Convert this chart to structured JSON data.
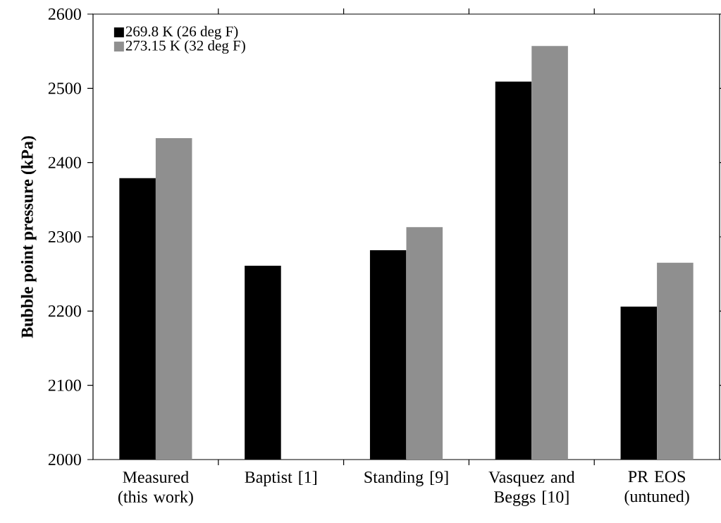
{
  "chart_data": {
    "type": "bar",
    "ylabel": "Bubble point pressure (kPa)",
    "categories": [
      "Measured (this work)",
      "Baptist [1]",
      "Standing [9]",
      "Vasquez and Beggs [10]",
      "PR EOS (untuned)"
    ],
    "series": [
      {
        "name": "269.8 K (26 deg F)",
        "color": "#000000",
        "values": [
          2379,
          2261,
          2282,
          2509,
          2206
        ]
      },
      {
        "name": "273.15 K (32 deg F)",
        "color": "#8f8f8f",
        "values": [
          2433,
          null,
          2313,
          2557,
          2265
        ]
      }
    ],
    "ylim": [
      2000,
      2600
    ],
    "yticks": [
      2000,
      2100,
      2200,
      2300,
      2400,
      2500,
      2600
    ],
    "legend": "top left"
  }
}
